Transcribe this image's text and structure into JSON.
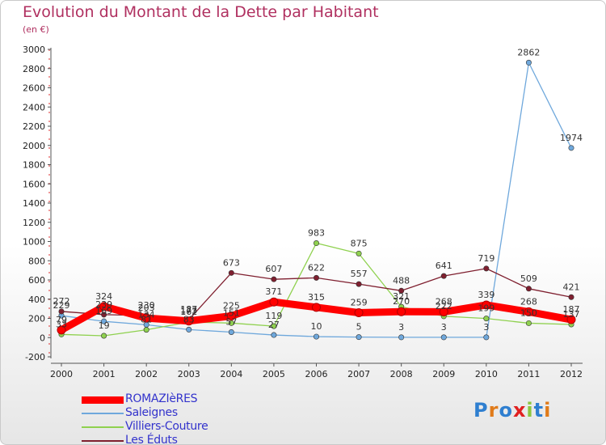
{
  "chart_data": {
    "type": "line",
    "title": "Evolution du Montant de la Dette par Habitant",
    "subtitle": "(en €)",
    "categories": [
      "2000",
      "2001",
      "2002",
      "2003",
      "2004",
      "2005",
      "2006",
      "2007",
      "2008",
      "2009",
      "2010",
      "2011",
      "2012"
    ],
    "ylim": [
      -200,
      3000
    ],
    "yticks": [
      -200,
      0,
      200,
      400,
      600,
      800,
      1000,
      1200,
      1400,
      1600,
      1800,
      2000,
      2200,
      2400,
      2600,
      2800,
      3000
    ],
    "grid": false,
    "legend_position": "bottom-left",
    "series": [
      {
        "name": "ROMAZIèRES",
        "color": "#ff0000",
        "values": [
          79,
          324,
          203,
          173,
          225,
          371,
          315,
          259,
          270,
          268,
          339,
          268,
          187
        ]
      },
      {
        "name": "Saleignes",
        "color": "#6fa8dc",
        "values": [
          229,
          169,
          134,
          83,
          57,
          27,
          10,
          5,
          3,
          3,
          3,
          2862,
          1974
        ]
      },
      {
        "name": "Villiers-Couture",
        "color": "#8fd14f",
        "values": [
          33,
          19,
          81,
          162,
          151,
          119,
          983,
          875,
          321,
          222,
          199,
          150,
          137
        ]
      },
      {
        "name": "Les Éduts",
        "color": "#7f1f2f",
        "values": [
          272,
          239,
          230,
          187,
          673,
          607,
          622,
          557,
          488,
          641,
          719,
          509,
          421
        ]
      }
    ]
  },
  "logo": {
    "text": "Proxiti"
  }
}
